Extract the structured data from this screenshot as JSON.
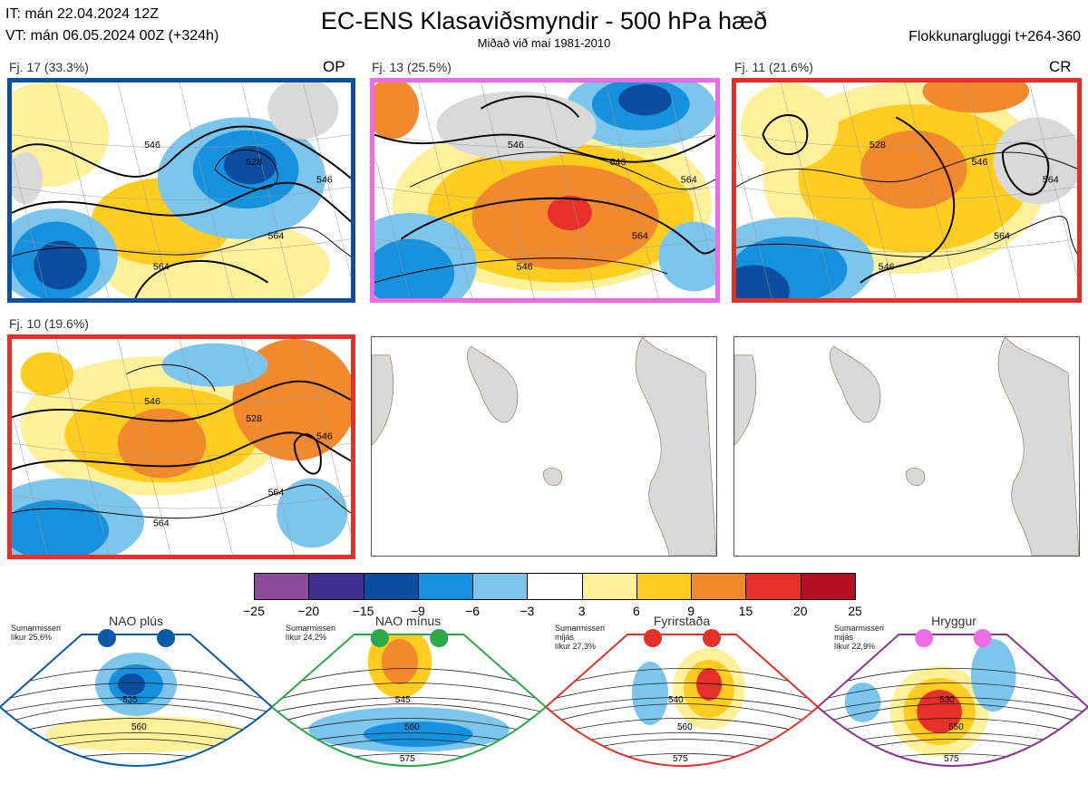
{
  "header": {
    "init_time": "IT: mán 22.04.2024 12Z",
    "valid_time": "VT: mán 06.05.2024 00Z  (+324h)",
    "title": "EC-ENS Klasaviðsmyndir - 500 hPa hæð",
    "subtitle": "Miðað við maí 1981-2010",
    "window": "Flokkunargluggi t+264-360"
  },
  "clusters": [
    {
      "label": "Fj. 17 (33.3%)",
      "tag": "OP",
      "border_color": "#0a4fa0",
      "contours": [
        "546",
        "528",
        "546",
        "564",
        "564"
      ]
    },
    {
      "label": "Fj. 13 (25.5%)",
      "tag": "",
      "border_color": "#ee6be6",
      "contours": [
        "546",
        "546",
        "564",
        "564",
        "546"
      ]
    },
    {
      "label": "Fj. 11 (21.6%)",
      "tag": "CR",
      "border_color": "#e8302a",
      "contours": [
        "528",
        "546",
        "564",
        "564",
        "546"
      ]
    },
    {
      "label": "Fj. 10 (19.6%)",
      "tag": "",
      "border_color": "#e8302a",
      "contours": [
        "546",
        "528",
        "546",
        "564",
        "564"
      ]
    }
  ],
  "colorbar": {
    "ticks": [
      "−25",
      "−20",
      "−15",
      "−9",
      "−6",
      "−3",
      "3",
      "6",
      "9",
      "15",
      "20",
      "25"
    ],
    "colors": [
      "#8e4a9c",
      "#3f2f8f",
      "#0b4d9e",
      "#1591dd",
      "#7cc6ee",
      "#ffffff",
      "#fff19a",
      "#ffcc20",
      "#f2892c",
      "#e8302a",
      "#b2101e"
    ]
  },
  "regimes": [
    {
      "name": "NAO plús",
      "note1": "Sumarmisseri",
      "note2": "",
      "note3": "líkur 25,6%",
      "color": "#0a5aa8",
      "dot_color": "#0a5aa8",
      "contours": [
        "535",
        "560"
      ]
    },
    {
      "name": "NAO mínus",
      "note1": "Sumarmisseri",
      "note2": "",
      "note3": "líkur 24,2%",
      "color": "#2ba84a",
      "dot_color": "#2ba84a",
      "contours": [
        "545",
        "560",
        "575"
      ]
    },
    {
      "name": "Fyrirstaða",
      "note1": "Sumarmisseri",
      "note2": "mijás",
      "note3": "líkur 27,3%",
      "color": "#e8302a",
      "dot_color": "#e8302a",
      "contours": [
        "540",
        "560",
        "575"
      ]
    },
    {
      "name": "Hryggur",
      "note1": "Sumarmisseri",
      "note2": "mijás",
      "note3": "líkur 22,9%",
      "color": "#8a3596",
      "dot_color": "#ee6be6",
      "contours": [
        "530",
        "550",
        "575"
      ]
    }
  ]
}
